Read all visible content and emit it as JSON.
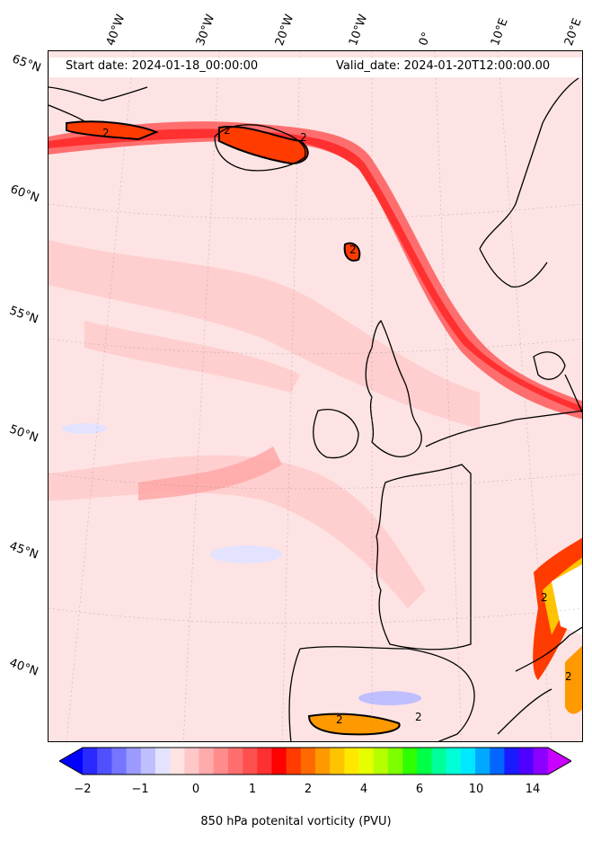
{
  "header": {
    "start_date": "Start date: 2024-01-18_00:00:00",
    "valid_date": "Valid_date: 2024-01-20T12:00:00.00"
  },
  "axes": {
    "lon_labels": [
      "40°W",
      "30°W",
      "20°W",
      "10°W",
      "0°",
      "10°E",
      "20°E"
    ],
    "lat_labels": [
      "65°N",
      "60°N",
      "55°N",
      "50°N",
      "45°N",
      "40°N"
    ]
  },
  "colorbar": {
    "title": "850 hPa potenital vorticity (PVU)",
    "tick_labels": [
      "−2",
      "−1",
      "0",
      "1",
      "2",
      "4",
      "6",
      "10",
      "14"
    ],
    "colors": [
      "#0000ff",
      "#2a2aff",
      "#5050ff",
      "#7575ff",
      "#9a9aff",
      "#bfbfff",
      "#e3e3ff",
      "#ffe3e3",
      "#ffc8c8",
      "#ffaaaa",
      "#ff8c8c",
      "#ff6e6e",
      "#ff5050",
      "#ff3030",
      "#ff0000",
      "#ff3b00",
      "#ff6a00",
      "#ff9900",
      "#ffc400",
      "#ffe800",
      "#e6ff00",
      "#b5ff00",
      "#7dff00",
      "#2fff00",
      "#00ff47",
      "#00ff99",
      "#00ffd7",
      "#00e8ff",
      "#00a8ff",
      "#0066ff",
      "#1a1aff",
      "#5000ff",
      "#8c00ff",
      "#c800ff"
    ],
    "extend": "both"
  },
  "map": {
    "contour_label": "2",
    "palette": {
      "background": "#fde3e3",
      "light": "#ffc8c8",
      "medium": "#ff8c8c",
      "strong": "#ff3030",
      "intense": "#ff3b00",
      "negative": "#e3e3ff",
      "coast": "#000000"
    }
  }
}
